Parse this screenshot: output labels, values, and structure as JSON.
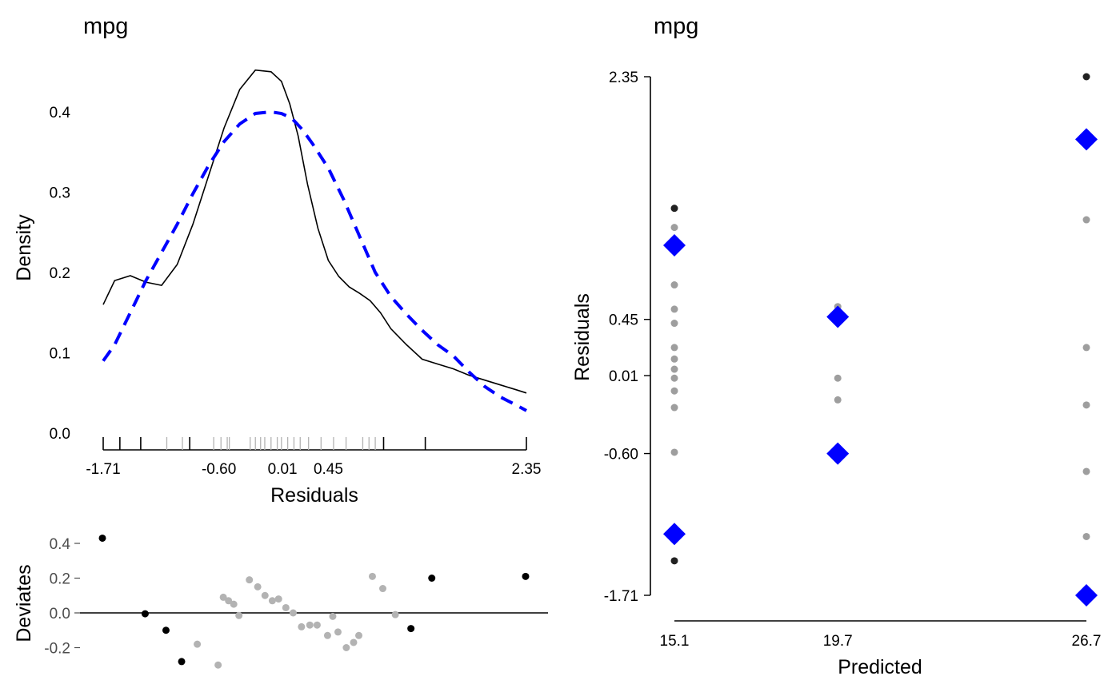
{
  "colors": {
    "density": "#000000",
    "normal": "#0000ff",
    "point_grey": "#9e9e9e",
    "point_light": "#b3b3b3",
    "point_dark": "#000000",
    "axis": "#000000"
  },
  "chart_data": [
    {
      "type": "line",
      "title": "mpg",
      "xlabel": "Residuals",
      "ylabel": "Density",
      "xlim": [
        -1.71,
        2.35
      ],
      "ylim": [
        0,
        0.45
      ],
      "y_ticks": [
        "0.0",
        "0.1",
        "0.2",
        "0.3",
        "0.4"
      ],
      "y_tick_values": [
        0,
        0.1,
        0.2,
        0.3,
        0.4
      ],
      "x_ticks": [
        "-1.71",
        "-0.60",
        "0.01",
        "0.45",
        "2.35"
      ],
      "x_tick_values": [
        -1.71,
        -0.6,
        0.01,
        0.45,
        2.35
      ],
      "series": [
        {
          "style": "solid",
          "x": [
            -1.71,
            -1.6,
            -1.45,
            -1.3,
            -1.15,
            -1.0,
            -0.85,
            -0.7,
            -0.55,
            -0.4,
            -0.25,
            -0.1,
            0.0,
            0.08,
            0.16,
            0.25,
            0.35,
            0.45,
            0.55,
            0.65,
            0.75,
            0.85,
            0.95,
            1.05,
            1.2,
            1.35,
            1.5,
            1.65,
            1.8,
            1.95,
            2.1,
            2.25,
            2.35
          ],
          "y": [
            0.16,
            0.19,
            0.196,
            0.188,
            0.184,
            0.21,
            0.26,
            0.32,
            0.38,
            0.428,
            0.452,
            0.45,
            0.438,
            0.41,
            0.37,
            0.31,
            0.255,
            0.215,
            0.195,
            0.182,
            0.174,
            0.165,
            0.15,
            0.13,
            0.11,
            0.092,
            0.086,
            0.08,
            0.072,
            0.066,
            0.06,
            0.054,
            0.05
          ]
        },
        {
          "style": "dashed",
          "x": [
            -1.71,
            -1.6,
            -1.45,
            -1.3,
            -1.15,
            -1.0,
            -0.85,
            -0.7,
            -0.55,
            -0.4,
            -0.25,
            -0.1,
            0.0,
            0.1,
            0.2,
            0.3,
            0.45,
            0.6,
            0.75,
            0.9,
            1.05,
            1.2,
            1.35,
            1.5,
            1.65,
            1.8,
            1.95,
            2.1,
            2.25,
            2.35
          ],
          "y": [
            0.09,
            0.11,
            0.15,
            0.19,
            0.225,
            0.26,
            0.298,
            0.333,
            0.363,
            0.385,
            0.398,
            0.4,
            0.398,
            0.392,
            0.378,
            0.36,
            0.33,
            0.29,
            0.245,
            0.2,
            0.17,
            0.148,
            0.128,
            0.11,
            0.096,
            0.076,
            0.058,
            0.045,
            0.035,
            0.028
          ]
        }
      ],
      "rug_dark": [
        -1.71,
        -1.55,
        -1.35,
        -0.88,
        0.98,
        1.38,
        2.35
      ],
      "rug_grey": [
        -1.1,
        -0.95,
        -0.65,
        -0.58,
        -0.52,
        -0.5,
        -0.3,
        -0.25,
        -0.2,
        -0.16,
        -0.1,
        -0.04,
        0.0,
        0.06,
        0.12,
        0.18,
        0.26,
        0.38,
        0.5,
        0.62,
        0.78,
        0.84,
        0.9
      ]
    },
    {
      "type": "scatter",
      "ylabel": "Deviates",
      "xlim": [
        -1.71,
        2.35
      ],
      "ylim": [
        -0.32,
        0.48
      ],
      "y_ticks": [
        "-0.2",
        "0.0",
        "0.2",
        "0.4"
      ],
      "y_tick_values": [
        -0.2,
        0.0,
        0.2,
        0.4
      ],
      "series": [
        {
          "group": "dark",
          "x": [
            -1.71,
            -1.3,
            -1.1,
            -0.95,
            1.25,
            1.45,
            2.35
          ],
          "y": [
            0.43,
            -0.005,
            -0.1,
            -0.28,
            -0.09,
            0.2,
            0.21
          ]
        },
        {
          "group": "grey",
          "x": [
            -0.8,
            -0.6,
            -0.55,
            -0.5,
            -0.45,
            -0.4,
            -0.3,
            -0.22,
            -0.15,
            -0.08,
            -0.02,
            0.05,
            0.12,
            0.2,
            0.28,
            0.35,
            0.45,
            0.5,
            0.55,
            0.63,
            0.7,
            0.75,
            0.88,
            0.98,
            1.1
          ],
          "y": [
            -0.18,
            -0.3,
            0.09,
            0.07,
            0.05,
            -0.015,
            0.19,
            0.15,
            0.1,
            0.07,
            0.08,
            0.03,
            0.0,
            -0.08,
            -0.07,
            -0.07,
            -0.13,
            -0.02,
            -0.11,
            -0.2,
            -0.17,
            -0.13,
            0.21,
            0.14,
            -0.01
          ]
        }
      ]
    },
    {
      "type": "scatter",
      "title": "mpg",
      "xlabel": "Predicted",
      "ylabel": "Residuals",
      "xlim": [
        15.1,
        26.7
      ],
      "ylim": [
        -1.71,
        2.35
      ],
      "x_ticks": [
        "15.1",
        "19.7",
        "26.7"
      ],
      "x_tick_values": [
        15.1,
        19.7,
        26.7
      ],
      "y_ticks": [
        "-1.71",
        "-0.60",
        "0.01",
        "0.45",
        "2.35"
      ],
      "y_tick_values": [
        -1.71,
        -0.6,
        0.01,
        0.45,
        2.35
      ],
      "series": [
        {
          "group": "dark",
          "x": [
            15.1,
            15.1,
            26.7
          ],
          "y": [
            1.32,
            -1.44,
            2.35
          ]
        },
        {
          "group": "grey",
          "x": [
            15.1,
            15.1,
            15.1,
            15.1,
            15.1,
            15.1,
            15.1,
            15.1,
            15.1,
            15.1,
            15.1,
            19.7,
            19.7,
            19.7,
            26.7,
            26.7,
            26.7,
            26.7,
            26.7
          ],
          "y": [
            1.17,
            0.72,
            0.42,
            0.23,
            0.14,
            0.06,
            -0.01,
            -0.11,
            -0.24,
            -0.59,
            0.53,
            0.55,
            -0.01,
            -0.18,
            1.23,
            0.23,
            -0.22,
            -0.74,
            -1.25
          ]
        },
        {
          "group": "quantile",
          "x": [
            15.1,
            15.1,
            19.7,
            19.7,
            26.7,
            26.7
          ],
          "y": [
            1.03,
            -1.23,
            0.47,
            -0.6,
            1.86,
            -1.71
          ]
        }
      ]
    }
  ]
}
